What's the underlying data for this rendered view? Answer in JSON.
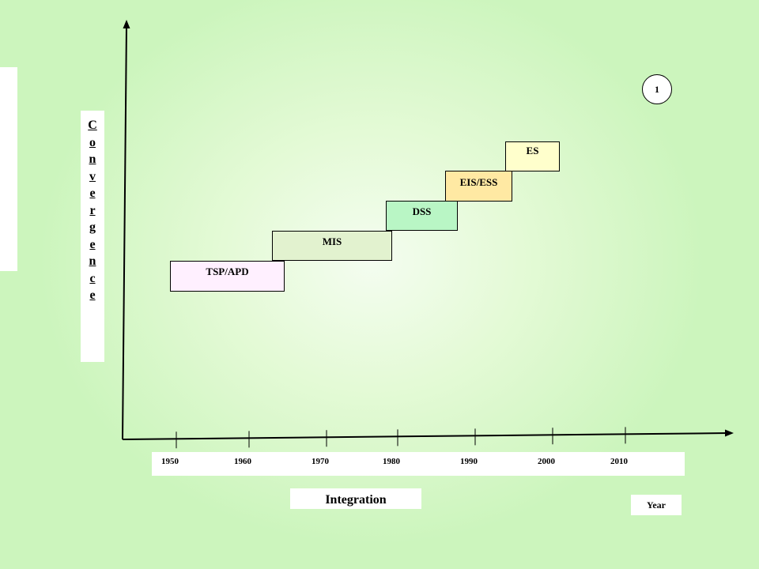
{
  "vertical_label": "Convergence",
  "horizontal_label": "Integration",
  "unit_label": "Year",
  "page_number": "1",
  "years": [
    "1950",
    "1960",
    "1970",
    "1980",
    "1990",
    "2000",
    "2010"
  ],
  "stages": [
    {
      "label": "TSP/APD",
      "color": "#fff0ff"
    },
    {
      "label": "MIS",
      "color": "#e2f2cf"
    },
    {
      "label": "DSS",
      "color": "#b9f6c5"
    },
    {
      "label": "EIS/ESS",
      "color": "#ffe9a3"
    },
    {
      "label": "ES",
      "color": "#ffffcc"
    }
  ]
}
